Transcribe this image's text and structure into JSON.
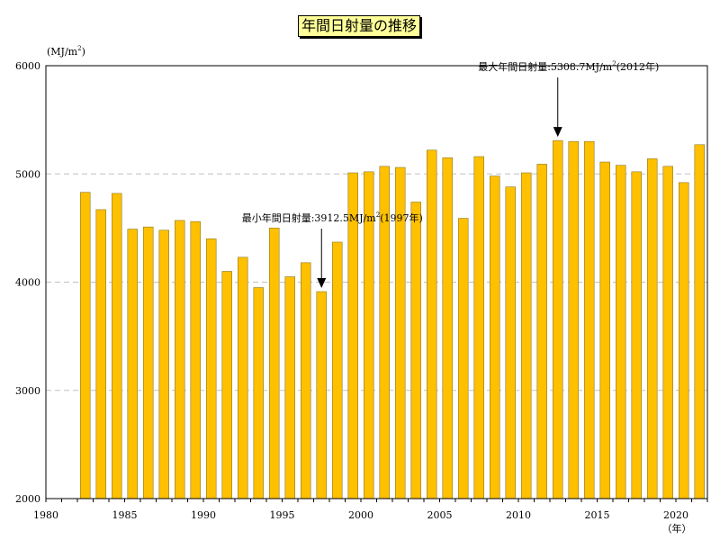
{
  "chart_data": {
    "type": "bar",
    "title": "年間日射量の推移",
    "ylabel": "(MJ/m2)",
    "ylabel_base": "(MJ/m",
    "ylabel_sup": "2",
    "ylabel_end": ")",
    "xunit": "（年）",
    "ylim": [
      2000,
      6000
    ],
    "xlim": [
      1980,
      2022
    ],
    "yticks": [
      2000,
      3000,
      4000,
      5000,
      6000
    ],
    "xticks": [
      1980,
      1985,
      1990,
      1995,
      2000,
      2005,
      2010,
      2015,
      2020
    ],
    "bar_color": "#ffc000",
    "bar_edge": "#8a7a2a",
    "grid_color": "#c0c0c0",
    "years": [
      1982,
      1983,
      1984,
      1985,
      1986,
      1987,
      1988,
      1989,
      1990,
      1991,
      1992,
      1993,
      1994,
      1995,
      1996,
      1997,
      1998,
      1999,
      2000,
      2001,
      2002,
      2003,
      2004,
      2005,
      2006,
      2007,
      2008,
      2009,
      2010,
      2011,
      2012,
      2013,
      2014,
      2015,
      2016,
      2017,
      2018,
      2019,
      2020,
      2021
    ],
    "values": [
      4830,
      4670,
      4820,
      4490,
      4510,
      4480,
      4570,
      4560,
      4400,
      4100,
      4230,
      3950,
      4500,
      4050,
      4180,
      3912.5,
      4370,
      5010,
      5020,
      5070,
      5060,
      4740,
      5220,
      5150,
      4590,
      5160,
      4980,
      4880,
      5010,
      5090,
      5308.7,
      5300,
      5300,
      5110,
      5080,
      5020,
      5140,
      5070,
      4920,
      5270
    ],
    "annotations": [
      {
        "name": "min",
        "year": 1997,
        "value": 3912.5,
        "label_before": "最小年間日射量:3912.5MJ/m",
        "label_sup": "2",
        "label_after": "(1997年)"
      },
      {
        "name": "max",
        "year": 2012,
        "value": 5308.7,
        "label_before": "最大年間日射量:5308.7MJ/m",
        "label_sup": "2",
        "label_after": "(2012年)"
      }
    ]
  }
}
